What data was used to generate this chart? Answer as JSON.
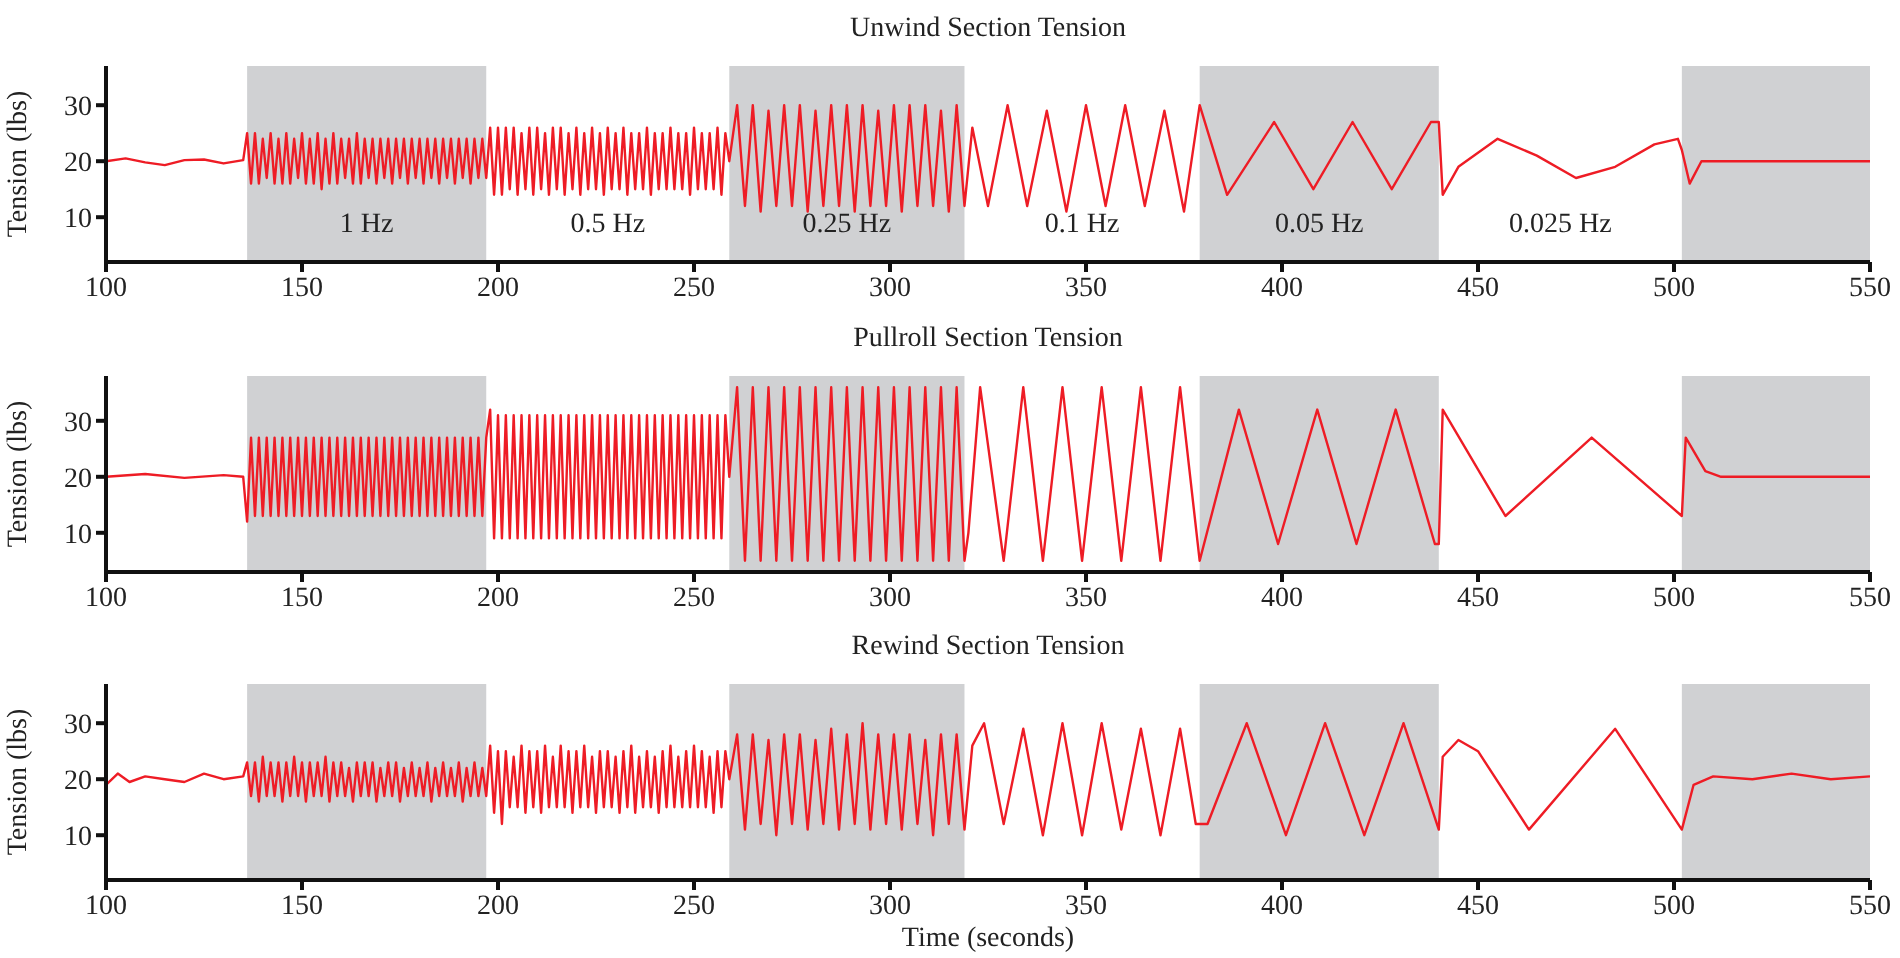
{
  "chart_data": [
    {
      "type": "line",
      "title": "Unwind Section Tension",
      "ylabel": "Tension (lbs)",
      "xlim": [
        100,
        550
      ],
      "xticks": [
        100,
        150,
        200,
        250,
        300,
        350,
        400,
        450,
        500,
        550
      ],
      "ylim": [
        2,
        37
      ],
      "yticks": [
        10,
        20,
        30
      ],
      "bands": [
        {
          "axis": "x",
          "from": 136,
          "to": 197,
          "color": "#d0d1d3"
        },
        {
          "axis": "x",
          "from": 259,
          "to": 319,
          "color": "#d0d1d3"
        },
        {
          "axis": "x",
          "from": 379,
          "to": 440,
          "color": "#d0d1d3"
        },
        {
          "axis": "x",
          "from": 502,
          "to": 550,
          "color": "#d0d1d3"
        }
      ],
      "annotations": [
        "1 Hz",
        "0.5 Hz",
        "0.25 Hz",
        "0.1 Hz",
        "0.05 Hz",
        "0.025 Hz"
      ],
      "series": [
        {
          "color": "#ee1c25",
          "x": [
            100,
            105,
            110,
            115,
            120,
            125,
            130,
            135,
            136,
            137,
            138,
            139,
            140,
            141,
            142,
            143,
            144,
            145,
            146,
            147,
            148,
            149,
            150,
            151,
            152,
            153,
            154,
            155,
            156,
            157,
            158,
            159,
            160,
            161,
            162,
            163,
            164,
            165,
            166,
            167,
            168,
            169,
            170,
            171,
            172,
            173,
            174,
            175,
            176,
            177,
            178,
            179,
            180,
            181,
            182,
            183,
            184,
            185,
            186,
            187,
            188,
            189,
            190,
            191,
            192,
            193,
            194,
            195,
            196,
            197,
            198,
            199,
            200,
            201,
            202,
            203,
            204,
            205,
            206,
            207,
            208,
            209,
            210,
            211,
            212,
            213,
            214,
            215,
            216,
            217,
            218,
            219,
            220,
            221,
            222,
            223,
            224,
            225,
            226,
            227,
            228,
            229,
            230,
            231,
            232,
            233,
            234,
            235,
            236,
            237,
            238,
            239,
            240,
            241,
            242,
            243,
            244,
            245,
            246,
            247,
            248,
            249,
            250,
            251,
            252,
            253,
            254,
            255,
            256,
            257,
            258,
            259,
            261,
            263,
            265,
            267,
            269,
            271,
            273,
            275,
            277,
            279,
            281,
            283,
            285,
            287,
            289,
            291,
            293,
            295,
            297,
            299,
            301,
            303,
            305,
            307,
            309,
            311,
            313,
            315,
            317,
            319,
            321,
            325,
            330,
            335,
            340,
            345,
            350,
            355,
            360,
            365,
            370,
            375,
            379,
            386,
            398,
            408,
            418,
            428,
            438,
            440,
            441,
            445,
            455,
            465,
            475,
            485,
            495,
            501,
            502,
            504,
            507,
            520,
            535,
            550
          ],
          "values": [
            20,
            20.5,
            19.8,
            19.3,
            20.2,
            20.3,
            19.6,
            20.2,
            25,
            16,
            25,
            16,
            24,
            17,
            25,
            16,
            24,
            16,
            25,
            16,
            24,
            17,
            25,
            16,
            24,
            16,
            25,
            15,
            24,
            16,
            25,
            16,
            24,
            17,
            24,
            16,
            25,
            16,
            24,
            17,
            24,
            16,
            24,
            17,
            24,
            16,
            24,
            17,
            24,
            16,
            24,
            17,
            24,
            16,
            24,
            17,
            24,
            16,
            24,
            17,
            24,
            16,
            24,
            17,
            24,
            16,
            24,
            17,
            24,
            17,
            26,
            14,
            26,
            14,
            26,
            15,
            26,
            14,
            25,
            15,
            26,
            14,
            26,
            15,
            25,
            14,
            26,
            15,
            26,
            14,
            25,
            15,
            26,
            14,
            25,
            15,
            26,
            15,
            25,
            14,
            26,
            15,
            25,
            15,
            26,
            14,
            25,
            15,
            25,
            15,
            26,
            14,
            25,
            15,
            25,
            15,
            26,
            15,
            25,
            15,
            25,
            14,
            26,
            15,
            25,
            15,
            25,
            15,
            26,
            14,
            25,
            20,
            30,
            12,
            30,
            11,
            29,
            12,
            30,
            12,
            30,
            11,
            29,
            12,
            30,
            12,
            30,
            11,
            30,
            12,
            29,
            12,
            30,
            11,
            30,
            12,
            30,
            12,
            29,
            11,
            30,
            12,
            26,
            12,
            30,
            12,
            29,
            11,
            30,
            12,
            30,
            12,
            29,
            11,
            30,
            14,
            27,
            15,
            27,
            15,
            27,
            27,
            14,
            19,
            24,
            21,
            17,
            19,
            23,
            24,
            22,
            16,
            20,
            20,
            20,
            20
          ]
        }
      ]
    },
    {
      "type": "line",
      "title": "Pullroll Section Tension",
      "ylabel": "Tension (lbs)",
      "xlim": [
        100,
        550
      ],
      "xticks": [
        100,
        150,
        200,
        250,
        300,
        350,
        400,
        450,
        500,
        550
      ],
      "ylim": [
        3,
        38
      ],
      "yticks": [
        10,
        20,
        30
      ],
      "bands": [
        {
          "axis": "x",
          "from": 136,
          "to": 197,
          "color": "#d0d1d3"
        },
        {
          "axis": "x",
          "from": 259,
          "to": 319,
          "color": "#d0d1d3"
        },
        {
          "axis": "x",
          "from": 379,
          "to": 440,
          "color": "#d0d1d3"
        },
        {
          "axis": "x",
          "from": 502,
          "to": 550,
          "color": "#d0d1d3"
        }
      ],
      "series": [
        {
          "color": "#ee1c25",
          "x": [
            100,
            110,
            120,
            130,
            135,
            136,
            137,
            138,
            139,
            140,
            141,
            142,
            143,
            144,
            145,
            146,
            147,
            148,
            149,
            150,
            151,
            152,
            153,
            154,
            155,
            156,
            157,
            158,
            159,
            160,
            161,
            162,
            163,
            164,
            165,
            166,
            167,
            168,
            169,
            170,
            171,
            172,
            173,
            174,
            175,
            176,
            177,
            178,
            179,
            180,
            181,
            182,
            183,
            184,
            185,
            186,
            187,
            188,
            189,
            190,
            191,
            192,
            193,
            194,
            195,
            196,
            197,
            198,
            199,
            200,
            201,
            202,
            203,
            204,
            205,
            206,
            207,
            208,
            209,
            210,
            211,
            212,
            213,
            214,
            215,
            216,
            217,
            218,
            219,
            220,
            221,
            222,
            223,
            224,
            225,
            226,
            227,
            228,
            229,
            230,
            231,
            232,
            233,
            234,
            235,
            236,
            237,
            238,
            239,
            240,
            241,
            242,
            243,
            244,
            245,
            246,
            247,
            248,
            249,
            250,
            251,
            252,
            253,
            254,
            255,
            256,
            257,
            258,
            259,
            261,
            263,
            265,
            267,
            269,
            271,
            273,
            275,
            277,
            279,
            281,
            283,
            285,
            287,
            289,
            291,
            293,
            295,
            297,
            299,
            301,
            303,
            305,
            307,
            309,
            311,
            313,
            315,
            317,
            319,
            320,
            323,
            329,
            334,
            339,
            344,
            349,
            354,
            359,
            364,
            369,
            374,
            379,
            389,
            399,
            409,
            419,
            429,
            439,
            440,
            441,
            457,
            479,
            502,
            503,
            508,
            512,
            530,
            550
          ],
          "values": [
            20,
            20.5,
            19.8,
            20.3,
            20,
            12,
            27,
            13,
            27,
            13,
            27,
            13,
            27,
            13,
            27,
            13,
            27,
            13,
            27,
            13,
            27,
            13,
            27,
            13,
            27,
            13,
            27,
            13,
            27,
            13,
            27,
            13,
            27,
            13,
            27,
            13,
            27,
            13,
            27,
            13,
            27,
            13,
            27,
            13,
            27,
            13,
            27,
            13,
            27,
            13,
            27,
            13,
            27,
            13,
            27,
            13,
            27,
            13,
            27,
            13,
            27,
            13,
            27,
            13,
            27,
            13,
            27,
            32,
            9,
            31,
            9,
            31,
            9,
            31,
            9,
            31,
            9,
            31,
            9,
            31,
            9,
            31,
            9,
            31,
            9,
            31,
            9,
            31,
            9,
            31,
            9,
            31,
            9,
            31,
            9,
            31,
            9,
            31,
            9,
            31,
            9,
            31,
            9,
            31,
            9,
            31,
            9,
            31,
            9,
            31,
            9,
            31,
            9,
            31,
            9,
            31,
            9,
            31,
            9,
            31,
            9,
            31,
            9,
            31,
            9,
            31,
            9,
            31,
            20,
            36,
            5,
            36,
            5,
            36,
            5,
            36,
            5,
            36,
            5,
            36,
            5,
            36,
            5,
            36,
            5,
            36,
            5,
            36,
            5,
            36,
            5,
            36,
            5,
            36,
            5,
            36,
            5,
            36,
            5,
            10,
            36,
            5,
            36,
            5,
            36,
            5,
            36,
            5,
            36,
            5,
            36,
            5,
            32,
            8,
            32,
            8,
            32,
            8,
            8,
            32,
            13,
            27,
            13,
            27,
            21,
            20,
            20,
            20
          ]
        }
      ]
    },
    {
      "type": "line",
      "title": "Rewind Section Tension",
      "xlabel": "Time (seconds)",
      "ylabel": "Tension (lbs)",
      "xlim": [
        100,
        550
      ],
      "xticks": [
        100,
        150,
        200,
        250,
        300,
        350,
        400,
        450,
        500,
        550
      ],
      "ylim": [
        2,
        37
      ],
      "yticks": [
        10,
        20,
        30
      ],
      "bands": [
        {
          "axis": "x",
          "from": 136,
          "to": 197,
          "color": "#d0d1d3"
        },
        {
          "axis": "x",
          "from": 259,
          "to": 319,
          "color": "#d0d1d3"
        },
        {
          "axis": "x",
          "from": 379,
          "to": 440,
          "color": "#d0d1d3"
        },
        {
          "axis": "x",
          "from": 502,
          "to": 550,
          "color": "#d0d1d3"
        }
      ],
      "series": [
        {
          "color": "#ee1c25",
          "x": [
            100,
            103,
            106,
            110,
            115,
            120,
            125,
            130,
            135,
            136,
            137,
            138,
            139,
            140,
            141,
            142,
            143,
            144,
            145,
            146,
            147,
            148,
            149,
            150,
            151,
            152,
            153,
            154,
            155,
            156,
            157,
            158,
            159,
            160,
            161,
            162,
            163,
            164,
            165,
            166,
            167,
            168,
            169,
            170,
            171,
            172,
            173,
            174,
            175,
            176,
            177,
            178,
            179,
            180,
            181,
            182,
            183,
            184,
            185,
            186,
            187,
            188,
            189,
            190,
            191,
            192,
            193,
            194,
            195,
            196,
            197,
            198,
            199,
            200,
            201,
            202,
            203,
            204,
            205,
            206,
            207,
            208,
            209,
            210,
            211,
            212,
            213,
            214,
            215,
            216,
            217,
            218,
            219,
            220,
            221,
            222,
            223,
            224,
            225,
            226,
            227,
            228,
            229,
            230,
            231,
            232,
            233,
            234,
            235,
            236,
            237,
            238,
            239,
            240,
            241,
            242,
            243,
            244,
            245,
            246,
            247,
            248,
            249,
            250,
            251,
            252,
            253,
            254,
            255,
            256,
            257,
            258,
            259,
            261,
            263,
            265,
            267,
            269,
            271,
            273,
            275,
            277,
            279,
            281,
            283,
            285,
            287,
            289,
            291,
            293,
            295,
            297,
            299,
            301,
            303,
            305,
            307,
            309,
            311,
            313,
            315,
            317,
            319,
            321,
            324,
            329,
            334,
            339,
            344,
            349,
            354,
            359,
            364,
            369,
            374,
            378,
            381,
            391,
            401,
            411,
            421,
            431,
            440,
            441,
            445,
            450,
            463,
            485,
            502,
            505,
            510,
            520,
            530,
            540,
            550
          ],
          "values": [
            19,
            21,
            19.5,
            20.5,
            20,
            19.5,
            21,
            20,
            20.5,
            23,
            17,
            23,
            16,
            24,
            17,
            23,
            17,
            23,
            16,
            23,
            17,
            24,
            17,
            23,
            16,
            23,
            17,
            23,
            17,
            24,
            16,
            23,
            17,
            23,
            17,
            22,
            16,
            23,
            17,
            23,
            17,
            23,
            16,
            22,
            17,
            23,
            17,
            23,
            16,
            22,
            17,
            23,
            17,
            22,
            17,
            23,
            16,
            22,
            17,
            23,
            17,
            22,
            17,
            23,
            16,
            22,
            17,
            23,
            17,
            22,
            17,
            26,
            14,
            25,
            12,
            25,
            15,
            24,
            15,
            26,
            14,
            25,
            15,
            25,
            14,
            26,
            15,
            24,
            15,
            26,
            15,
            25,
            14,
            25,
            15,
            26,
            15,
            24,
            14,
            25,
            15,
            25,
            15,
            24,
            14,
            25,
            15,
            26,
            14,
            24,
            15,
            25,
            15,
            24,
            14,
            25,
            15,
            26,
            15,
            24,
            15,
            25,
            15,
            26,
            15,
            25,
            15,
            24,
            14,
            25,
            15,
            25,
            20,
            28,
            11,
            28,
            12,
            27,
            10,
            28,
            12,
            28,
            11,
            27,
            12,
            29,
            11,
            28,
            12,
            30,
            11,
            28,
            12,
            28,
            11,
            28,
            12,
            27,
            10,
            28,
            12,
            28,
            11,
            26,
            30,
            12,
            29,
            10,
            30,
            10,
            30,
            11,
            29,
            10,
            29,
            12,
            12,
            30,
            10,
            30,
            10,
            30,
            11,
            24,
            27,
            25,
            11,
            29,
            11,
            19,
            20.5,
            20,
            21,
            20,
            20.5
          ]
        }
      ]
    }
  ]
}
